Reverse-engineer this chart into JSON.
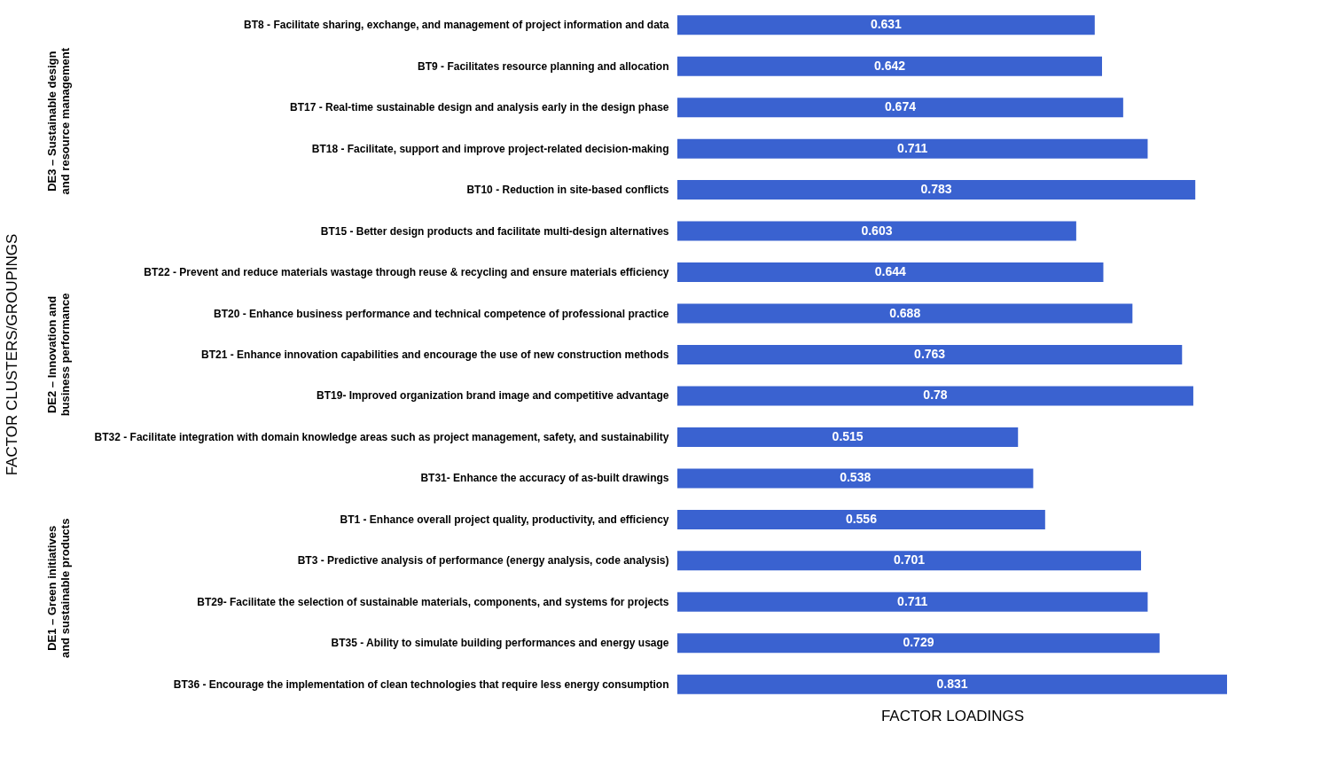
{
  "chart_data": {
    "type": "bar",
    "orientation": "horizontal",
    "xlabel": "FACTOR LOADINGS",
    "ylabel": "FACTOR CLUSTERS/GROUPINGS",
    "categories": [
      "BT8 - Facilitate sharing, exchange, and management of project information and data",
      "BT9 - Facilitates resource planning and allocation",
      "BT17 - Real-time sustainable design and analysis early in the design phase",
      "BT18 - Facilitate, support and improve project-related decision-making",
      "BT10 - Reduction in site-based conflicts",
      "BT15 - Better design products and facilitate multi-design alternatives",
      "BT22 - Prevent and reduce materials wastage through reuse & recycling and ensure materials efficiency",
      "BT20 - Enhance business performance and technical competence of professional practice",
      "BT21 - Enhance innovation capabilities and encourage the use of new construction methods",
      "BT19- Improved organization brand image and competitive advantage",
      "BT32 - Facilitate integration with domain knowledge areas such as project management, safety, and sustainability",
      "BT31- Enhance the accuracy of as-built drawings",
      "BT1 - Enhance overall project quality, productivity, and efficiency",
      "BT3 - Predictive analysis of performance (energy analysis, code analysis)",
      "BT29- Facilitate the selection of sustainable materials, components, and systems for projects",
      "BT35 - Ability to simulate building performances and energy usage",
      "BT36 - Encourage the implementation of clean technologies that require less energy consumption"
    ],
    "series": [
      {
        "color": "#3a62d0",
        "values": [
          0.631,
          0.642,
          0.674,
          0.711,
          0.783,
          0.603,
          0.644,
          0.688,
          0.763,
          0.78,
          0.515,
          0.538,
          0.556,
          0.701,
          0.711,
          0.729,
          0.831
        ]
      }
    ],
    "data_labels": true,
    "grid": false,
    "annotations": [
      "DE3 – Sustainable design and resource management",
      "DE2 – Innovation and business performance",
      "DE1 – Green initiatives and sustainable products"
    ]
  }
}
